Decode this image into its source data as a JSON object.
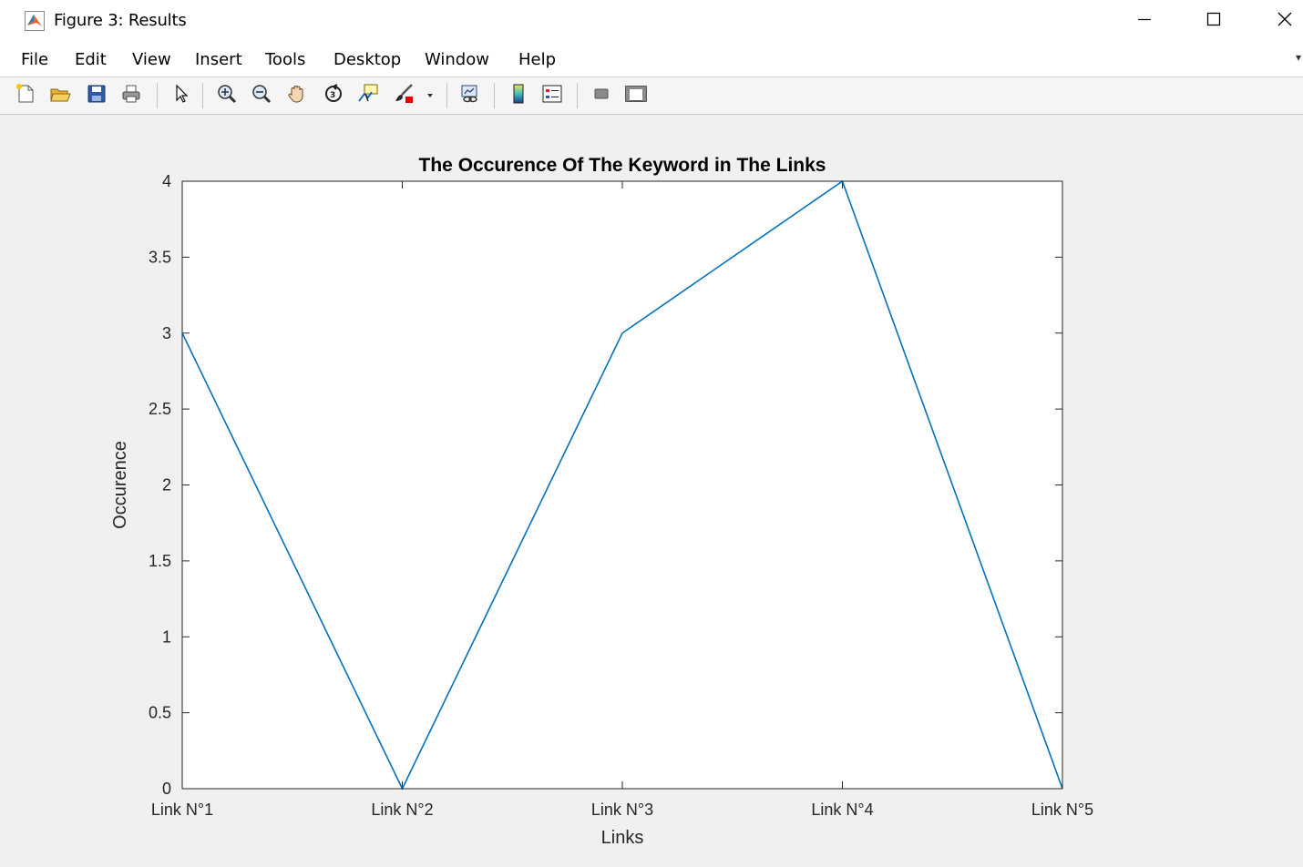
{
  "window": {
    "title": "Figure 3: Results",
    "app_icon": "matlab-logo-icon",
    "controls": [
      "minimize-icon",
      "maximize-icon",
      "close-icon"
    ]
  },
  "menu": {
    "items": [
      "File",
      "Edit",
      "View",
      "Insert",
      "Tools",
      "Desktop",
      "Window",
      "Help"
    ],
    "overflow_glyph": "▾"
  },
  "toolbar": {
    "icons": [
      "new-figure-icon",
      "open-file-icon",
      "save-icon",
      "print-icon",
      "edit-plot-arrow-icon",
      "zoom-in-icon",
      "zoom-out-icon",
      "pan-hand-icon",
      "rotate-3d-icon",
      "data-cursor-icon",
      "brush-icon",
      "link-plot-icon",
      "insert-colorbar-icon",
      "insert-legend-icon",
      "hide-plot-tools-icon",
      "show-plot-tools-icon"
    ],
    "brush_color": "#e00000"
  },
  "chart_data": {
    "type": "line",
    "title": "The Occurence Of The Keyword in The Links",
    "xlabel": "Links",
    "ylabel": "Occurence",
    "categories": [
      "Link N°1",
      "Link N°2",
      "Link N°3",
      "Link N°4",
      "Link N°5"
    ],
    "series": [
      {
        "values": [
          3,
          0,
          3,
          4,
          0
        ],
        "color": "#0072bd"
      }
    ],
    "ylim": [
      0,
      4
    ],
    "yticks": [
      "0",
      "0.5",
      "1",
      "1.5",
      "2",
      "2.5",
      "3",
      "3.5",
      "4"
    ],
    "grid": false,
    "legend": "none"
  }
}
